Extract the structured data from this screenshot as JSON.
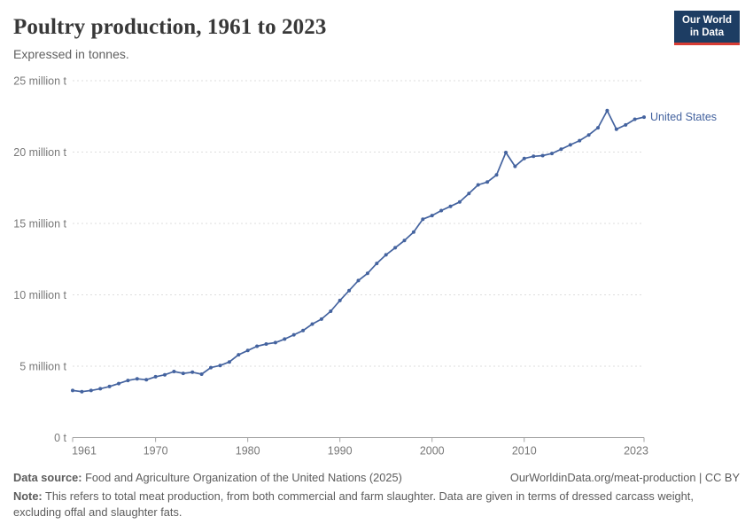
{
  "header": {
    "title": "Poultry production, 1961 to 2023",
    "subtitle": "Expressed in tonnes.",
    "logo": {
      "line1": "Our World",
      "line2": "in Data",
      "bg": "#1d3d63",
      "accent": "#d73c34"
    }
  },
  "chart_data": {
    "type": "line",
    "title": "Poultry production, 1961 to 2023",
    "subtitle": "Expressed in tonnes.",
    "unit": "tonnes",
    "xlabel": "",
    "ylabel": "",
    "xlim": [
      1961,
      2023
    ],
    "ylim": [
      0,
      25000000
    ],
    "grid": "horizontal-dashed",
    "legend_position": "end-of-line-label",
    "x_ticks": [
      1961,
      1970,
      1980,
      1990,
      2000,
      2010,
      2023
    ],
    "y_tick_values": [
      0,
      5,
      10,
      15,
      20,
      25
    ],
    "y_tick_labels": [
      "0 t",
      "5 million t",
      "10 million t",
      "15 million t",
      "20 million t",
      "25 million t"
    ],
    "series": [
      {
        "name": "United States",
        "color": "#44639f",
        "x": [
          1961,
          1962,
          1963,
          1964,
          1965,
          1966,
          1967,
          1968,
          1969,
          1970,
          1971,
          1972,
          1973,
          1974,
          1975,
          1976,
          1977,
          1978,
          1979,
          1980,
          1981,
          1982,
          1983,
          1984,
          1985,
          1986,
          1987,
          1988,
          1989,
          1990,
          1991,
          1992,
          1993,
          1994,
          1995,
          1996,
          1997,
          1998,
          1999,
          2000,
          2001,
          2002,
          2003,
          2004,
          2005,
          2006,
          2007,
          2008,
          2009,
          2010,
          2011,
          2012,
          2013,
          2014,
          2015,
          2016,
          2017,
          2018,
          2019,
          2020,
          2021,
          2022,
          2023
        ],
        "values_million_t": [
          3.3,
          3.22,
          3.3,
          3.42,
          3.58,
          3.78,
          4.0,
          4.12,
          4.05,
          4.26,
          4.4,
          4.63,
          4.5,
          4.58,
          4.44,
          4.9,
          5.05,
          5.3,
          5.8,
          6.1,
          6.4,
          6.55,
          6.65,
          6.9,
          7.2,
          7.5,
          7.95,
          8.3,
          8.85,
          9.6,
          10.3,
          11.0,
          11.5,
          12.2,
          12.8,
          13.3,
          13.8,
          14.4,
          15.3,
          15.55,
          15.9,
          16.2,
          16.5,
          17.1,
          17.7,
          17.9,
          18.4,
          19.97,
          19.0,
          19.55,
          19.7,
          19.75,
          19.9,
          20.2,
          20.5,
          20.8,
          21.2,
          21.7,
          22.9,
          21.6,
          21.9,
          22.3,
          22.45
        ]
      }
    ],
    "end_label": "United States"
  },
  "footer": {
    "datasource_label": "Data source:",
    "datasource_text": " Food and Agriculture Organization of the United Nations (2025)",
    "link_text": "OurWorldinData.org/meat-production | CC BY",
    "note_label": "Note:",
    "note_text": " This refers to total meat production, from both commercial and farm slaughter. Data are given in terms of dressed carcass weight, excluding offal and slaughter fats."
  }
}
